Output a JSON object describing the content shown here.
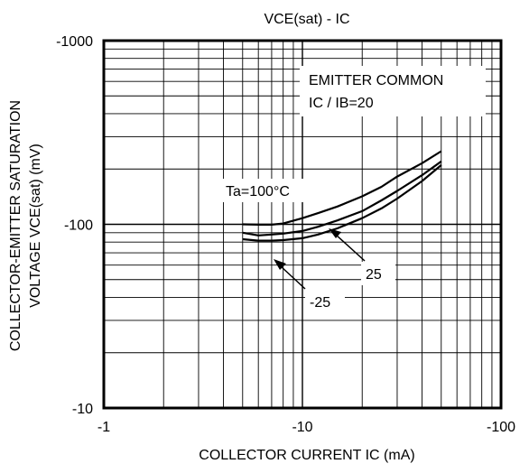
{
  "chart_data": {
    "type": "line",
    "title": "VCE(sat) - IC",
    "xlabel": "COLLECTOR CURRENT  IC (mA)",
    "ylabel_line1": "COLLECTOR-EMITTER SATURATION",
    "ylabel_line2": "VOLTAGE   VCE(sat) (mV)",
    "x_scale": "log",
    "y_scale": "log",
    "xlim": [
      -1,
      -100
    ],
    "ylim": [
      -10,
      -1000
    ],
    "x_ticks": [
      "-1",
      "-10",
      "-100"
    ],
    "y_ticks": [
      "-10",
      "-100",
      "-1000"
    ],
    "grid": true,
    "annotations": {
      "conditions_line1": "EMITTER COMMON",
      "conditions_line2": "IC / IB=20",
      "label_100": "Ta=100°C",
      "label_25": "25",
      "label_m25": "-25"
    },
    "series": [
      {
        "name": "Ta=100°C",
        "x": [
          -5,
          -6,
          -7,
          -8,
          -10,
          -12,
          -15,
          -20,
          -25,
          -30,
          -40,
          -50
        ],
        "y": [
          -100,
          -99.5,
          -99.5,
          -101,
          -108,
          -115,
          -125,
          -142,
          -160,
          -182,
          -215,
          -250
        ]
      },
      {
        "name": "25",
        "x": [
          -5,
          -6,
          -7,
          -8,
          -10,
          -12,
          -15,
          -20,
          -25,
          -30,
          -40,
          -50
        ],
        "y": [
          -90,
          -87,
          -88,
          -89,
          -92,
          -97,
          -105,
          -118,
          -135,
          -152,
          -185,
          -220
        ]
      },
      {
        "name": "-25",
        "x": [
          -5,
          -6,
          -7,
          -8,
          -10,
          -12,
          -15,
          -20,
          -25,
          -30,
          -40,
          -50
        ],
        "y": [
          -83,
          -81.5,
          -81.5,
          -82,
          -84,
          -88,
          -95,
          -108,
          -122,
          -138,
          -172,
          -210
        ]
      }
    ]
  }
}
